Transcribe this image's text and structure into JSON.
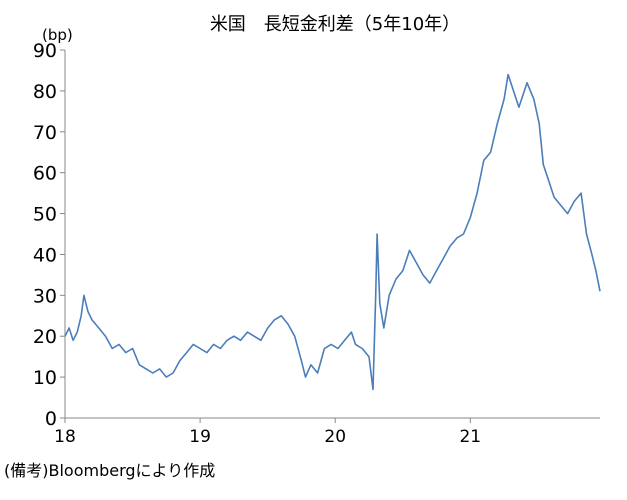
{
  "chart_data": {
    "type": "line",
    "title": "米国　長短金利差（5年10年）",
    "y_label": "(bp)",
    "note": "(備考)Bloombergにより作成",
    "xlim": [
      18,
      21.96
    ],
    "xticks": [
      18,
      19,
      20,
      21
    ],
    "ylim": [
      0,
      90
    ],
    "yticks": [
      0,
      10,
      20,
      30,
      40,
      50,
      60,
      70,
      80,
      90
    ],
    "grid": false,
    "x": [
      18.0,
      18.03,
      18.06,
      18.09,
      18.12,
      18.14,
      18.17,
      18.2,
      18.25,
      18.3,
      18.35,
      18.4,
      18.45,
      18.5,
      18.55,
      18.6,
      18.65,
      18.7,
      18.75,
      18.8,
      18.85,
      18.9,
      18.95,
      19.0,
      19.05,
      19.1,
      19.15,
      19.2,
      19.25,
      19.3,
      19.35,
      19.4,
      19.45,
      19.5,
      19.55,
      19.6,
      19.65,
      19.7,
      19.75,
      19.78,
      19.82,
      19.87,
      19.92,
      19.97,
      20.02,
      20.07,
      20.12,
      20.15,
      20.2,
      20.25,
      20.28,
      20.3,
      20.31,
      20.33,
      20.36,
      20.4,
      20.45,
      20.5,
      20.55,
      20.6,
      20.65,
      20.7,
      20.75,
      20.8,
      20.85,
      20.9,
      20.95,
      21.0,
      21.05,
      21.1,
      21.15,
      21.2,
      21.25,
      21.28,
      21.32,
      21.36,
      21.42,
      21.47,
      21.51,
      21.54,
      21.58,
      21.62,
      21.67,
      21.72,
      21.77,
      21.82,
      21.86,
      21.9,
      21.93,
      21.96
    ],
    "series": [
      {
        "color": "#4a7ebb",
        "values": [
          20,
          22,
          19,
          21,
          25,
          30,
          26,
          24,
          22,
          20,
          17,
          18,
          16,
          17,
          13,
          12,
          11,
          12,
          10,
          11,
          14,
          16,
          18,
          17,
          16,
          18,
          17,
          19,
          20,
          19,
          21,
          20,
          19,
          22,
          24,
          25,
          23,
          20,
          14,
          10,
          13,
          11,
          17,
          18,
          17,
          19,
          21,
          18,
          17,
          15,
          7,
          30,
          45,
          28,
          22,
          30,
          34,
          36,
          41,
          38,
          35,
          33,
          36,
          39,
          42,
          44,
          45,
          49,
          55,
          63,
          65,
          72,
          78,
          84,
          80,
          76,
          82,
          78,
          72,
          62,
          58,
          54,
          52,
          50,
          53,
          55,
          45,
          40,
          36,
          31
        ]
      }
    ]
  }
}
